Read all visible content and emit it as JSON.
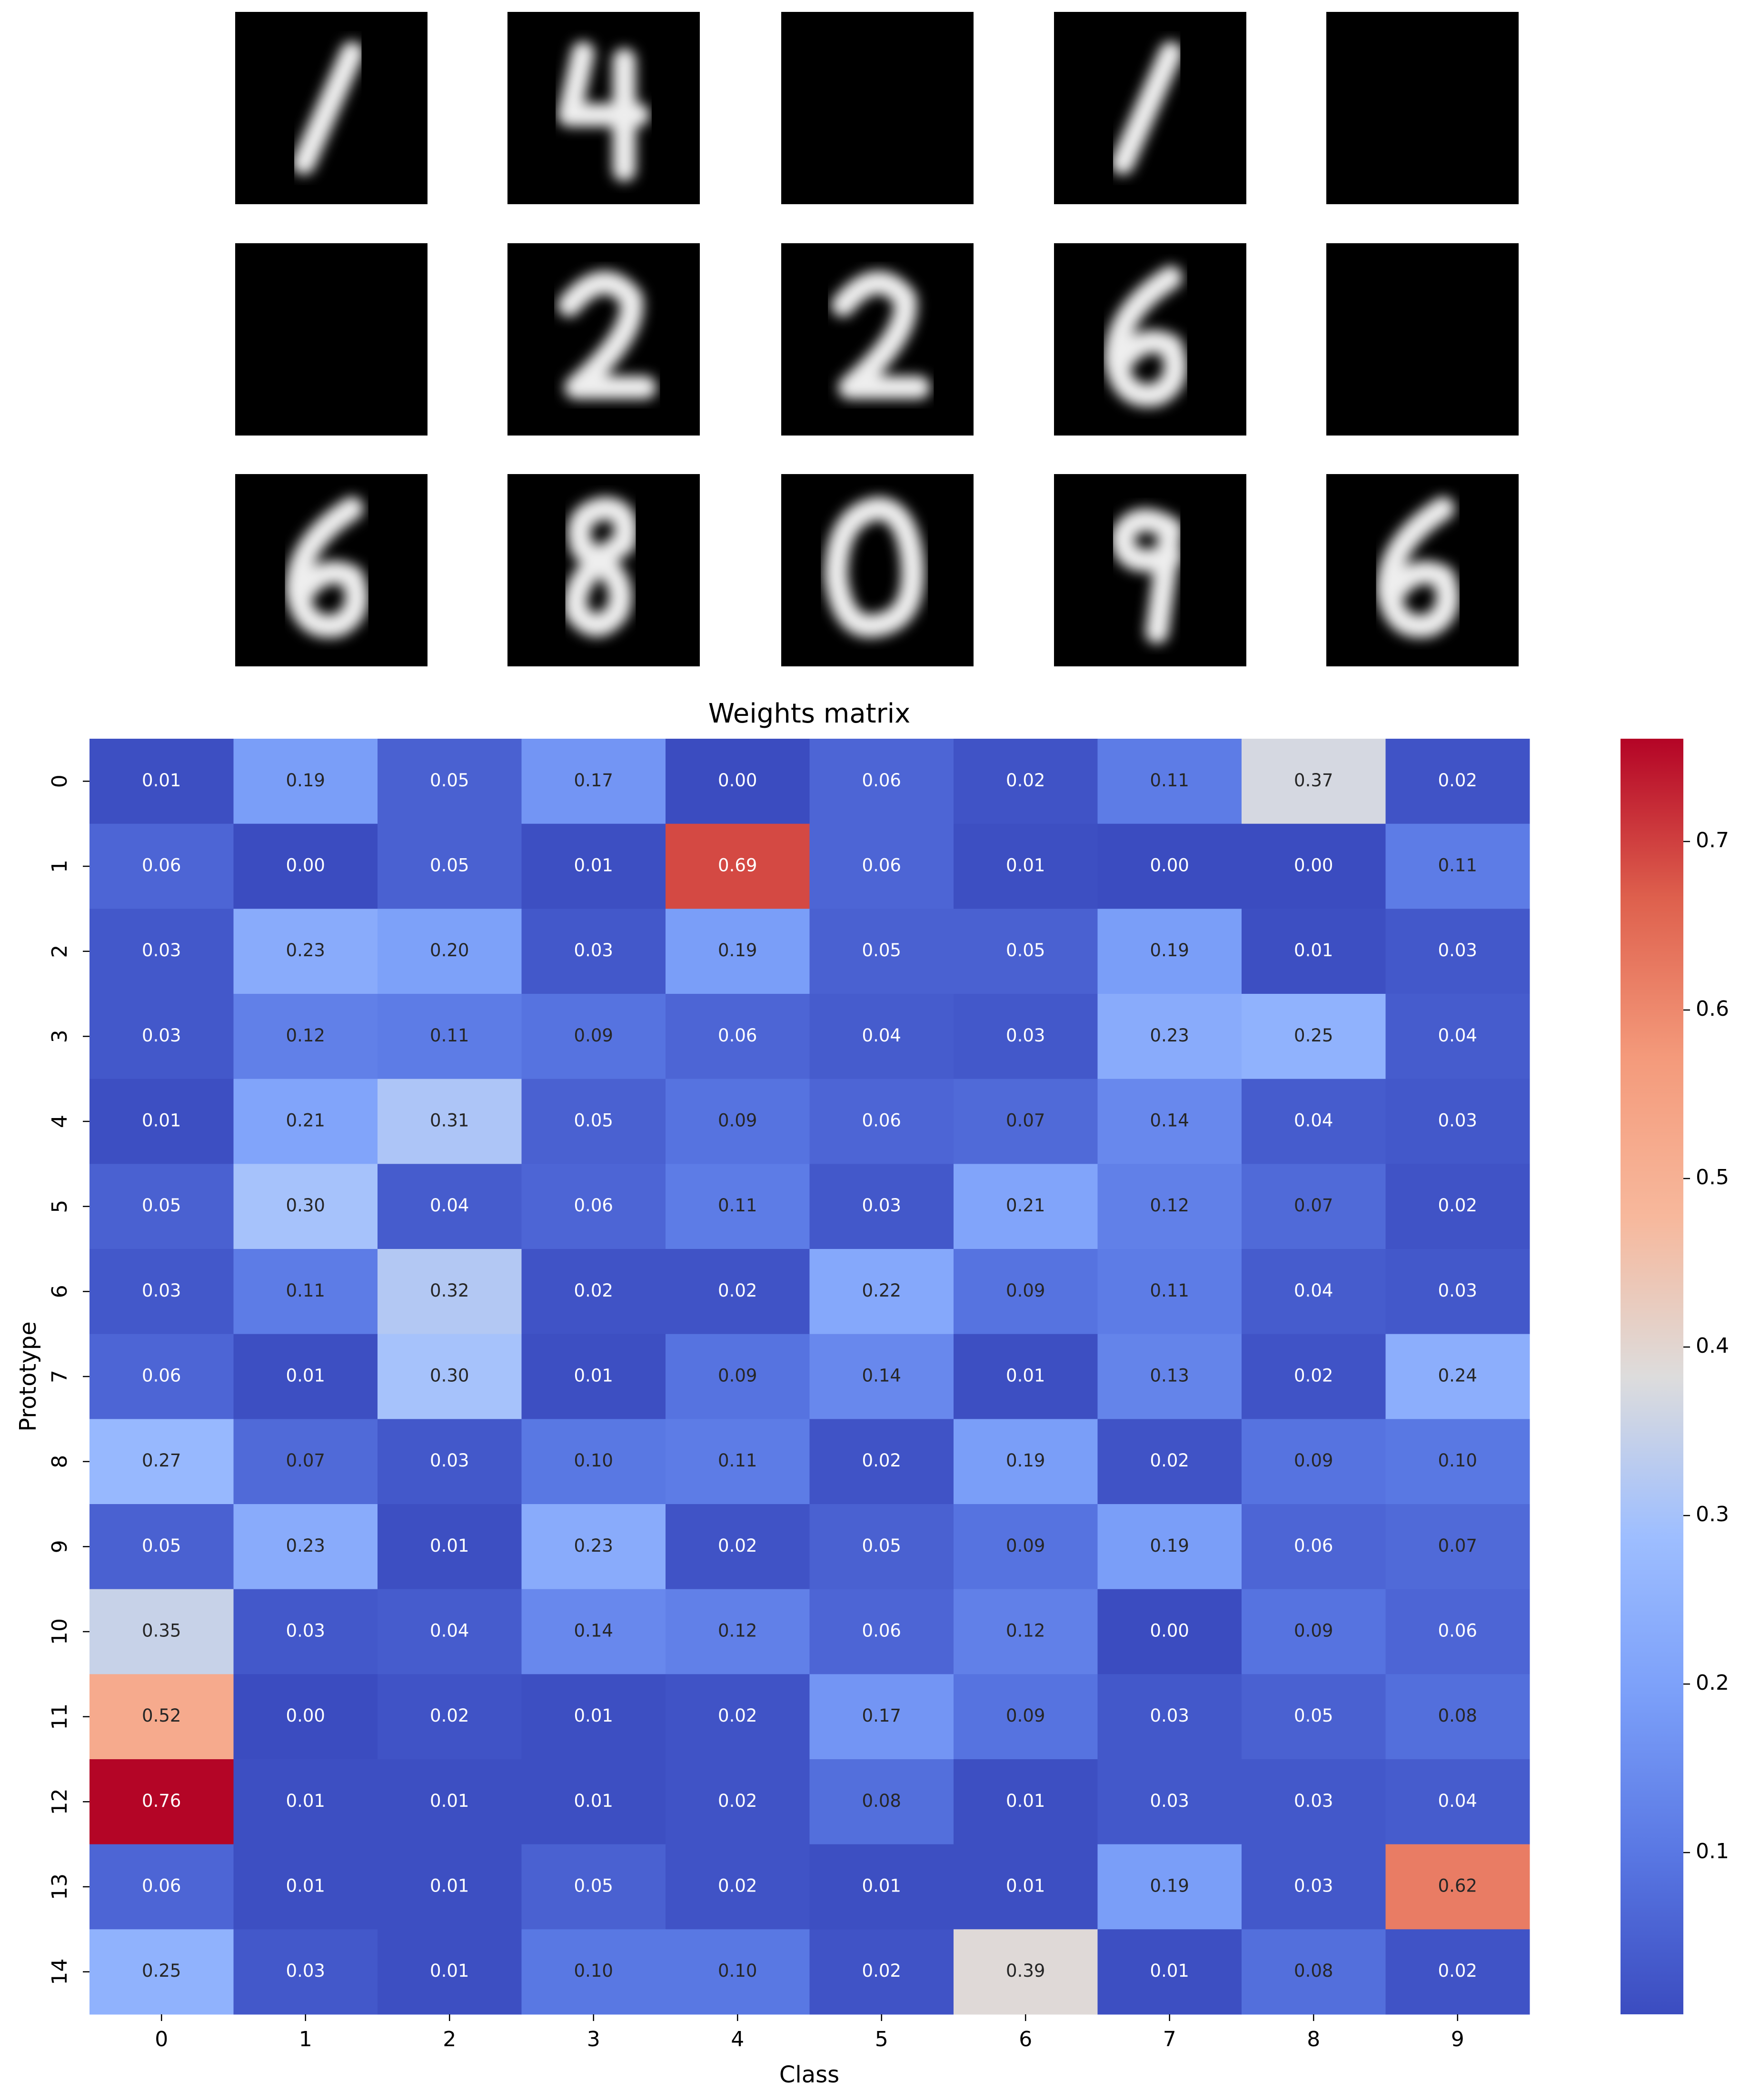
{
  "chart_data": {
    "type": "heatmap",
    "title": "Weights matrix",
    "xlabel": "Class",
    "ylabel": "Prototype",
    "x_categories": [
      "0",
      "1",
      "2",
      "3",
      "4",
      "5",
      "6",
      "7",
      "8",
      "9"
    ],
    "y_categories": [
      "0",
      "1",
      "2",
      "3",
      "4",
      "5",
      "6",
      "7",
      "8",
      "9",
      "10",
      "11",
      "12",
      "13",
      "14"
    ],
    "values": [
      [
        0.01,
        0.19,
        0.05,
        0.17,
        0,
        0.06,
        0.02,
        0.11,
        0.37,
        0.02
      ],
      [
        0.06,
        0,
        0.05,
        0.01,
        0.69,
        0.06,
        0.01,
        0,
        0,
        0.11
      ],
      [
        0.03,
        0.23,
        0.2,
        0.03,
        0.19,
        0.05,
        0.05,
        0.19,
        0.01,
        0.03
      ],
      [
        0.03,
        0.12,
        0.11,
        0.09,
        0.06,
        0.04,
        0.03,
        0.23,
        0.25,
        0.04
      ],
      [
        0.01,
        0.21,
        0.31,
        0.05,
        0.09,
        0.06,
        0.07,
        0.14,
        0.04,
        0.03
      ],
      [
        0.05,
        0.3,
        0.04,
        0.06,
        0.11,
        0.03,
        0.21,
        0.12,
        0.07,
        0.02
      ],
      [
        0.03,
        0.11,
        0.32,
        0.02,
        0.02,
        0.22,
        0.09,
        0.11,
        0.04,
        0.03
      ],
      [
        0.06,
        0.01,
        0.3,
        0.01,
        0.09,
        0.14,
        0.01,
        0.13,
        0.02,
        0.24
      ],
      [
        0.27,
        0.07,
        0.03,
        0.1,
        0.11,
        0.02,
        0.19,
        0.02,
        0.09,
        0.1
      ],
      [
        0.05,
        0.23,
        0.01,
        0.23,
        0.02,
        0.05,
        0.09,
        0.19,
        0.06,
        0.07
      ],
      [
        0.35,
        0.03,
        0.04,
        0.14,
        0.12,
        0.06,
        0.12,
        0,
        0.09,
        0.06
      ],
      [
        0.52,
        0,
        0.02,
        0.01,
        0.02,
        0.17,
        0.09,
        0.03,
        0.05,
        0.08
      ],
      [
        0.76,
        0.01,
        0.01,
        0.01,
        0.02,
        0.08,
        0.01,
        0.03,
        0.03,
        0.04
      ],
      [
        0.06,
        0.01,
        0.01,
        0.05,
        0.02,
        0.01,
        0.01,
        0.19,
        0.03,
        0.62
      ],
      [
        0.25,
        0.03,
        0.01,
        0.1,
        0.1,
        0.02,
        0.39,
        0.01,
        0.08,
        0.02
      ]
    ],
    "value_labels": [
      [
        "0.01",
        "0.19",
        "0.05",
        "0.17",
        "0.00",
        "0.06",
        "0.02",
        "0.11",
        "0.37",
        "0.02"
      ],
      [
        "0.06",
        "0.00",
        "0.05",
        "0.01",
        "0.69",
        "0.06",
        "0.01",
        "0.00",
        "0.00",
        "0.11"
      ],
      [
        "0.03",
        "0.23",
        "0.20",
        "0.03",
        "0.19",
        "0.05",
        "0.05",
        "0.19",
        "0.01",
        "0.03"
      ],
      [
        "0.03",
        "0.12",
        "0.11",
        "0.09",
        "0.06",
        "0.04",
        "0.03",
        "0.23",
        "0.25",
        "0.04"
      ],
      [
        "0.01",
        "0.21",
        "0.31",
        "0.05",
        "0.09",
        "0.06",
        "0.07",
        "0.14",
        "0.04",
        "0.03"
      ],
      [
        "0.05",
        "0.30",
        "0.04",
        "0.06",
        "0.11",
        "0.03",
        "0.21",
        "0.12",
        "0.07",
        "0.02"
      ],
      [
        "0.03",
        "0.11",
        "0.32",
        "0.02",
        "0.02",
        "0.22",
        "0.09",
        "0.11",
        "0.04",
        "0.03"
      ],
      [
        "0.06",
        "0.01",
        "0.30",
        "0.01",
        "0.09",
        "0.14",
        "0.01",
        "0.13",
        "0.02",
        "0.24"
      ],
      [
        "0.27",
        "0.07",
        "0.03",
        "0.10",
        "0.11",
        "0.02",
        "0.19",
        "0.02",
        "0.09",
        "0.10"
      ],
      [
        "0.05",
        "0.23",
        "0.01",
        "0.23",
        "0.02",
        "0.05",
        "0.09",
        "0.19",
        "0.06",
        "0.07"
      ],
      [
        "0.35",
        "0.03",
        "0.04",
        "0.14",
        "0.12",
        "0.06",
        "0.12",
        "0.00",
        "0.09",
        "0.06"
      ],
      [
        "0.52",
        "0.00",
        "0.02",
        "0.01",
        "0.02",
        "0.17",
        "0.09",
        "0.03",
        "0.05",
        "0.08"
      ],
      [
        "0.76",
        "0.01",
        "0.01",
        "0.01",
        "0.02",
        "0.08",
        "0.01",
        "0.03",
        "0.03",
        "0.04"
      ],
      [
        "0.06",
        "0.01",
        "0.01",
        "0.05",
        "0.02",
        "0.01",
        "0.01",
        "0.19",
        "0.03",
        "0.62"
      ],
      [
        "0.25",
        "0.03",
        "0.01",
        "0.10",
        "0.10",
        "0.02",
        "0.39",
        "0.01",
        "0.08",
        "0.02"
      ]
    ],
    "colormap": "coolwarm",
    "clim": [
      0.004,
      0.761
    ],
    "cticks": [
      0.1,
      0.2,
      0.3,
      0.4,
      0.5,
      0.6,
      0.7
    ]
  }
}
